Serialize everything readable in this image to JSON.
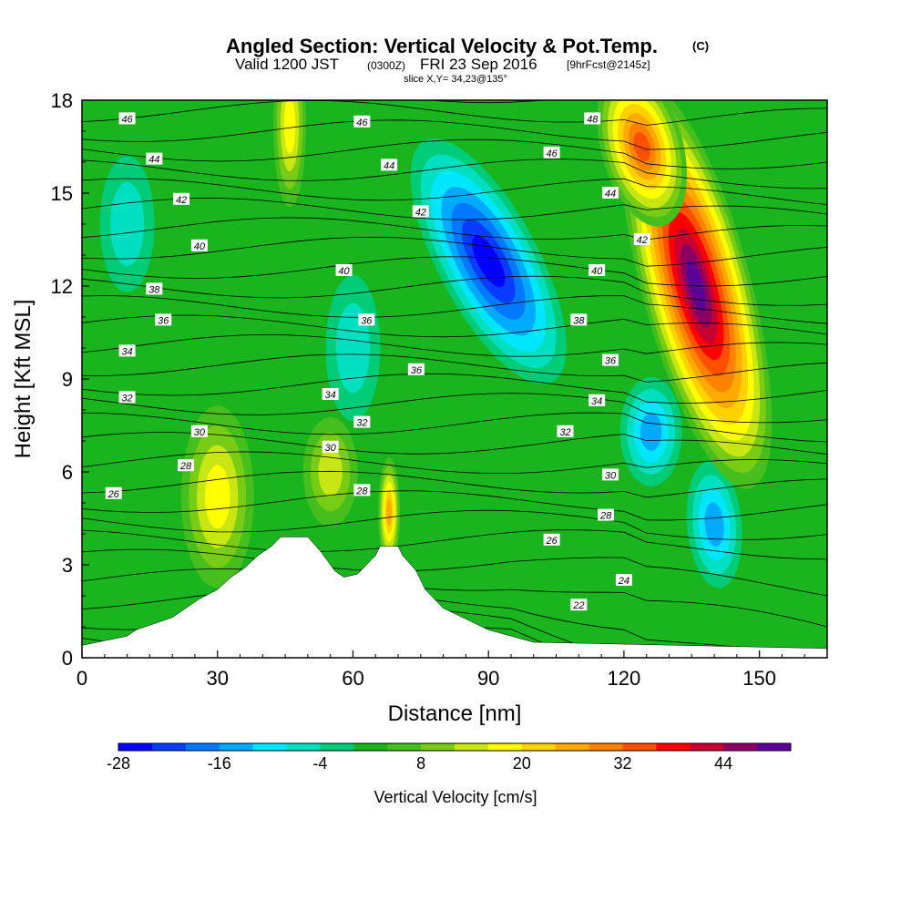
{
  "title": {
    "main": "Angled Section: Vertical Velocity & Pot.Temp.",
    "tag": "(C)",
    "sub_valid": "Valid 1200 JST",
    "sub_z": "(0300Z)",
    "sub_date": "FRI 23 Sep 2016",
    "sub_fcst": "[9hrFcst@2145z]",
    "slice": "slice X,Y= 34,23@135°"
  },
  "chart_data": {
    "type": "heatmap",
    "xlabel": "Distance [nm]",
    "ylabel": "Height [Kft MSL]",
    "xlim": [
      0,
      165
    ],
    "ylim": [
      0,
      18
    ],
    "xticks": [
      "0",
      "30",
      "60",
      "90",
      "120",
      "150"
    ],
    "yticks": [
      "0",
      "3",
      "6",
      "9",
      "12",
      "15",
      "18"
    ],
    "colorbar": {
      "label": "Vertical Velocity [cm/s]",
      "ticks": [
        "-28",
        "-16",
        "-4",
        "8",
        "20",
        "32",
        "44"
      ],
      "levels": [
        -28,
        -24,
        -20,
        -16,
        -12,
        -8,
        -4,
        0,
        4,
        8,
        12,
        16,
        20,
        24,
        28,
        32,
        36,
        40,
        44,
        48
      ],
      "colors": [
        "#0000ff",
        "#0a3cff",
        "#0078ff",
        "#00aaff",
        "#00e6ff",
        "#00e0c0",
        "#00cc78",
        "#19b41e",
        "#46be1e",
        "#78cd14",
        "#c8e614",
        "#ffff00",
        "#ffd200",
        "#ffaa00",
        "#ff8200",
        "#ff5000",
        "#ff0000",
        "#c80032",
        "#8c0064",
        "#5a0096"
      ]
    },
    "velocity_features": [
      {
        "x": 90,
        "y": 12.8,
        "value": -28
      },
      {
        "x": 126,
        "y": 7.3,
        "value": -16
      },
      {
        "x": 140,
        "y": 4.3,
        "value": -16
      },
      {
        "x": 60,
        "y": 10.0,
        "value": -8
      },
      {
        "x": 10,
        "y": 14.0,
        "value": -8
      },
      {
        "x": 136,
        "y": 12.0,
        "value": 48
      },
      {
        "x": 124,
        "y": 16.5,
        "value": 32
      },
      {
        "x": 68,
        "y": 4.7,
        "value": 24
      },
      {
        "x": 30,
        "y": 5.2,
        "value": 16
      },
      {
        "x": 46,
        "y": 17.2,
        "value": 16
      },
      {
        "x": 55,
        "y": 6.0,
        "value": 12
      }
    ],
    "terrain": {
      "x": [
        0,
        10,
        12,
        16,
        20,
        23,
        26,
        30,
        33,
        36,
        39,
        42,
        44,
        47,
        50,
        53,
        56,
        58,
        61,
        63,
        65,
        66,
        68,
        70,
        71,
        74,
        76,
        80,
        90,
        100,
        165
      ],
      "height": [
        0.4,
        0.7,
        0.9,
        1.1,
        1.3,
        1.6,
        1.9,
        2.2,
        2.6,
        2.9,
        3.3,
        3.6,
        3.9,
        3.9,
        3.9,
        3.4,
        2.8,
        2.6,
        2.7,
        3.0,
        3.3,
        3.6,
        3.6,
        3.6,
        3.3,
        2.8,
        2.2,
        1.6,
        0.9,
        0.5,
        0.3
      ]
    },
    "isentropes": [
      {
        "value": "22",
        "label_x": 110,
        "label_y": 1.7
      },
      {
        "value": "24",
        "label_x": 120,
        "label_y": 2.5
      },
      {
        "value": "26",
        "label_x": 7,
        "label_y": 5.3
      },
      {
        "value": "26",
        "label_x": 104,
        "label_y": 3.8
      },
      {
        "value": "28",
        "label_x": 23,
        "label_y": 6.2
      },
      {
        "value": "28",
        "label_x": 62,
        "label_y": 5.4
      },
      {
        "value": "28",
        "label_x": 116,
        "label_y": 4.6
      },
      {
        "value": "30",
        "label_x": 26,
        "label_y": 7.3
      },
      {
        "value": "30",
        "label_x": 55,
        "label_y": 6.8
      },
      {
        "value": "30",
        "label_x": 117,
        "label_y": 5.9
      },
      {
        "value": "32",
        "label_x": 10,
        "label_y": 8.4
      },
      {
        "value": "32",
        "label_x": 62,
        "label_y": 7.6
      },
      {
        "value": "32",
        "label_x": 107,
        "label_y": 7.3
      },
      {
        "value": "34",
        "label_x": 10,
        "label_y": 9.9
      },
      {
        "value": "34",
        "label_x": 55,
        "label_y": 8.5
      },
      {
        "value": "34",
        "label_x": 114,
        "label_y": 8.3
      },
      {
        "value": "36",
        "label_x": 18,
        "label_y": 10.9
      },
      {
        "value": "36",
        "label_x": 74,
        "label_y": 9.3
      },
      {
        "value": "36",
        "label_x": 117,
        "label_y": 9.6
      },
      {
        "value": "36",
        "label_x": 63,
        "label_y": 10.9
      },
      {
        "value": "38",
        "label_x": 16,
        "label_y": 11.9
      },
      {
        "value": "38",
        "label_x": 110,
        "label_y": 10.9
      },
      {
        "value": "40",
        "label_x": 26,
        "label_y": 13.3
      },
      {
        "value": "40",
        "label_x": 58,
        "label_y": 12.5
      },
      {
        "value": "40",
        "label_x": 114,
        "label_y": 12.5
      },
      {
        "value": "42",
        "label_x": 22,
        "label_y": 14.8
      },
      {
        "value": "42",
        "label_x": 75,
        "label_y": 14.4
      },
      {
        "value": "42",
        "label_x": 124,
        "label_y": 13.5
      },
      {
        "value": "44",
        "label_x": 16,
        "label_y": 16.1
      },
      {
        "value": "44",
        "label_x": 68,
        "label_y": 15.9
      },
      {
        "value": "44",
        "label_x": 117,
        "label_y": 15.0
      },
      {
        "value": "46",
        "label_x": 10,
        "label_y": 17.4
      },
      {
        "value": "46",
        "label_x": 62,
        "label_y": 17.3
      },
      {
        "value": "46",
        "label_x": 104,
        "label_y": 16.3
      },
      {
        "value": "48",
        "label_x": 113,
        "label_y": 17.4
      }
    ]
  }
}
